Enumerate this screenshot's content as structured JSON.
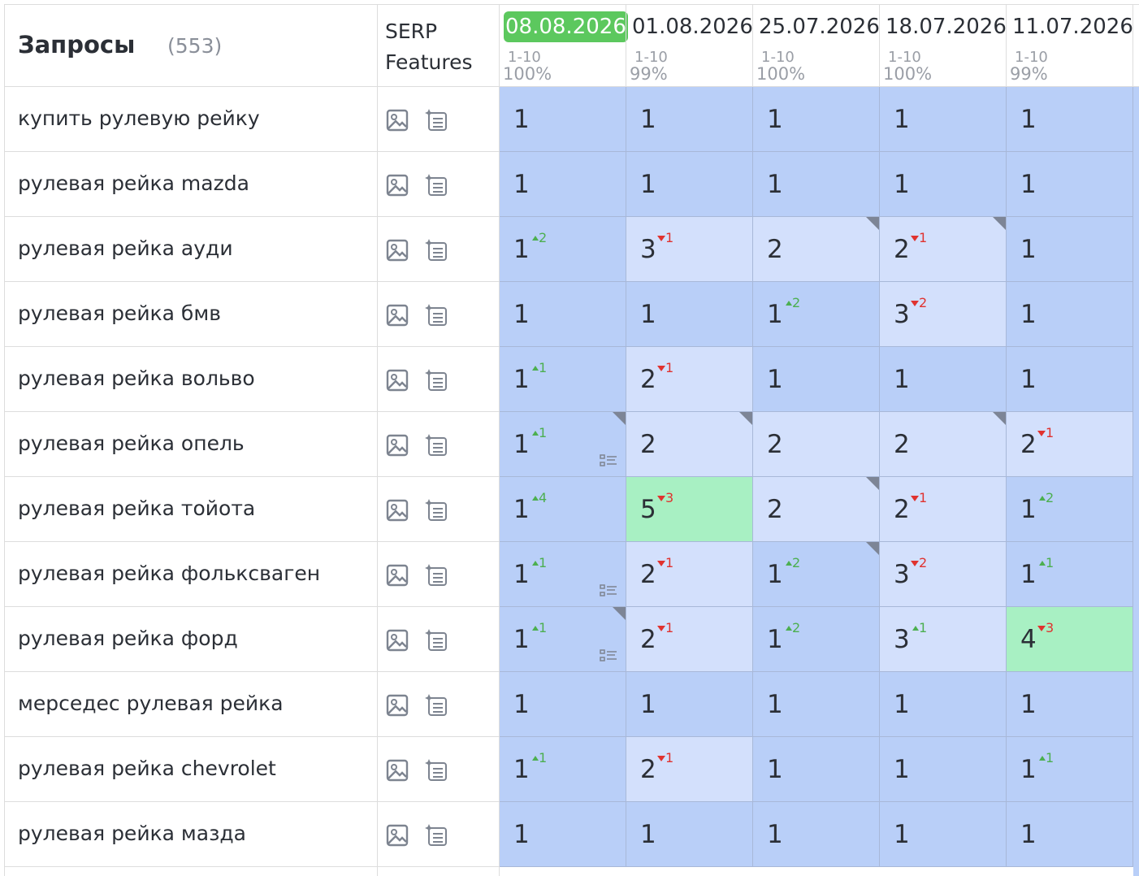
{
  "header": {
    "title": "Запросы",
    "count": "(553)",
    "serp": "SERP Features"
  },
  "dates": [
    {
      "date": "08.08.2026",
      "range": "1-10",
      "share": "100%",
      "highlight": true
    },
    {
      "date": "01.08.2026",
      "range": "1-10",
      "share": "99%"
    },
    {
      "date": "25.07.2026",
      "range": "1-10",
      "share": "100%"
    },
    {
      "date": "18.07.2026",
      "range": "1-10",
      "share": "100%"
    },
    {
      "date": "11.07.2026",
      "range": "1-10",
      "share": "99%"
    }
  ],
  "rows": [
    {
      "query": "купить рулевую рейку",
      "cells": [
        {
          "position": 1
        },
        {
          "position": 1
        },
        {
          "position": 1
        },
        {
          "position": 1
        },
        {
          "position": 1
        }
      ]
    },
    {
      "query": "рулевая рейка mazda",
      "cells": [
        {
          "position": 1
        },
        {
          "position": 1
        },
        {
          "position": 1
        },
        {
          "position": 1
        },
        {
          "position": 1
        }
      ]
    },
    {
      "query": "рулевая рейка ауди",
      "cells": [
        {
          "position": 1,
          "change": 2,
          "trend": "up"
        },
        {
          "position": 3,
          "change": 1,
          "trend": "down"
        },
        {
          "position": 2,
          "corner": true
        },
        {
          "position": 2,
          "change": 1,
          "trend": "down",
          "corner": true
        },
        {
          "position": 1
        }
      ]
    },
    {
      "query": "рулевая рейка бмв",
      "cells": [
        {
          "position": 1
        },
        {
          "position": 1
        },
        {
          "position": 1,
          "change": 2,
          "trend": "up"
        },
        {
          "position": 3,
          "change": 2,
          "trend": "down"
        },
        {
          "position": 1
        }
      ]
    },
    {
      "query": "рулевая рейка вольво",
      "cells": [
        {
          "position": 1,
          "change": 1,
          "trend": "up"
        },
        {
          "position": 2,
          "change": 1,
          "trend": "down"
        },
        {
          "position": 1
        },
        {
          "position": 1
        },
        {
          "position": 1
        }
      ]
    },
    {
      "query": "рулевая рейка опель",
      "cells": [
        {
          "position": 1,
          "change": 1,
          "trend": "up",
          "corner": true,
          "snippet": true
        },
        {
          "position": 2,
          "corner": true
        },
        {
          "position": 2
        },
        {
          "position": 2,
          "corner": true
        },
        {
          "position": 2,
          "change": 1,
          "trend": "down"
        }
      ]
    },
    {
      "query": "рулевая рейка тойота",
      "cells": [
        {
          "position": 1,
          "change": 4,
          "trend": "up"
        },
        {
          "position": 5,
          "change": 3,
          "trend": "down"
        },
        {
          "position": 2,
          "corner": true
        },
        {
          "position": 2,
          "change": 1,
          "trend": "down"
        },
        {
          "position": 1,
          "change": 2,
          "trend": "up"
        }
      ]
    },
    {
      "query": "рулевая рейка фольксваген",
      "cells": [
        {
          "position": 1,
          "change": 1,
          "trend": "up",
          "snippet": true
        },
        {
          "position": 2,
          "change": 1,
          "trend": "down"
        },
        {
          "position": 1,
          "change": 2,
          "trend": "up",
          "corner": true
        },
        {
          "position": 3,
          "change": 2,
          "trend": "down"
        },
        {
          "position": 1,
          "change": 1,
          "trend": "up"
        }
      ]
    },
    {
      "query": "рулевая рейка форд",
      "cells": [
        {
          "position": 1,
          "change": 1,
          "trend": "up",
          "corner": true,
          "snippet": true
        },
        {
          "position": 2,
          "change": 1,
          "trend": "down"
        },
        {
          "position": 1,
          "change": 2,
          "trend": "up"
        },
        {
          "position": 3,
          "change": 1,
          "trend": "up"
        },
        {
          "position": 4,
          "change": 3,
          "trend": "down"
        }
      ]
    },
    {
      "query": "мерседес рулевая рейка",
      "cells": [
        {
          "position": 1
        },
        {
          "position": 1
        },
        {
          "position": 1
        },
        {
          "position": 1
        },
        {
          "position": 1
        }
      ]
    },
    {
      "query": "рулевая рейка chevrolet",
      "cells": [
        {
          "position": 1,
          "change": 1,
          "trend": "up"
        },
        {
          "position": 2,
          "change": 1,
          "trend": "down"
        },
        {
          "position": 1
        },
        {
          "position": 1
        },
        {
          "position": 1,
          "change": 1,
          "trend": "up"
        }
      ]
    },
    {
      "query": "рулевая рейка мазда",
      "cells": [
        {
          "position": 1
        },
        {
          "position": 1
        },
        {
          "position": 1
        },
        {
          "position": 1
        },
        {
          "position": 1
        }
      ]
    }
  ]
}
